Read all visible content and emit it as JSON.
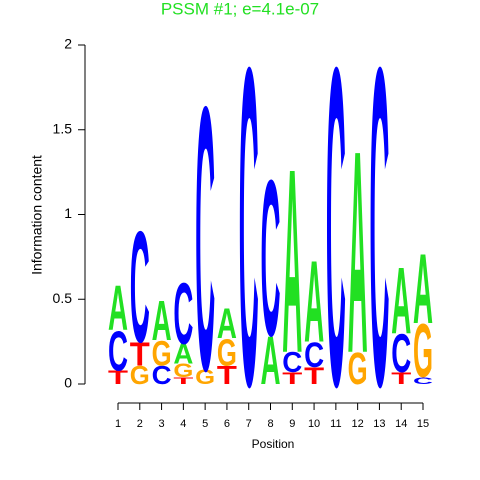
{
  "chart_data": {
    "type": "sequence-logo",
    "title": "PSSM #1; e=4.1e-07",
    "title_color": "#22e022",
    "x_label": "Position",
    "y_label": "Information content",
    "xlim": [
      1,
      15
    ],
    "xticks": [
      1,
      2,
      3,
      4,
      5,
      6,
      7,
      8,
      9,
      10,
      11,
      12,
      13,
      14,
      15
    ],
    "ylim": [
      0,
      2
    ],
    "yticks": [
      0,
      0.5,
      1,
      1.5,
      2
    ],
    "colors": {
      "A": "#22e022",
      "C": "#0000ff",
      "G": "#ffa500",
      "T": "#ff0000"
    },
    "stacks": [
      [
        {
          "letter": "T",
          "value": 0.08
        },
        {
          "letter": "C",
          "value": 0.24
        },
        {
          "letter": "A",
          "value": 0.27
        }
      ],
      [
        {
          "letter": "G",
          "value": 0.11
        },
        {
          "letter": "T",
          "value": 0.14
        },
        {
          "letter": "C",
          "value": 0.67
        }
      ],
      [
        {
          "letter": "C",
          "value": 0.11
        },
        {
          "letter": "G",
          "value": 0.15
        },
        {
          "letter": "A",
          "value": 0.24
        }
      ],
      [
        {
          "letter": "T",
          "value": 0.04
        },
        {
          "letter": "G",
          "value": 0.08
        },
        {
          "letter": "A",
          "value": 0.12
        },
        {
          "letter": "C",
          "value": 0.37
        }
      ],
      [
        {
          "letter": "G",
          "value": 0.09
        },
        {
          "letter": "C",
          "value": 1.59
        }
      ],
      [
        {
          "letter": "T",
          "value": 0.11
        },
        {
          "letter": "G",
          "value": 0.16
        },
        {
          "letter": "A",
          "value": 0.18
        }
      ],
      [
        {
          "letter": "C",
          "value": 1.92
        }
      ],
      [
        {
          "letter": "A",
          "value": 0.29
        },
        {
          "letter": "C",
          "value": 0.94
        }
      ],
      [
        {
          "letter": "T",
          "value": 0.07
        },
        {
          "letter": "C",
          "value": 0.12
        },
        {
          "letter": "A",
          "value": 1.11
        }
      ],
      [
        {
          "letter": "T",
          "value": 0.1
        },
        {
          "letter": "C",
          "value": 0.15
        },
        {
          "letter": "A",
          "value": 0.49
        }
      ],
      [
        {
          "letter": "C",
          "value": 1.92
        }
      ],
      [
        {
          "letter": "G",
          "value": 0.19
        },
        {
          "letter": "A",
          "value": 1.22
        }
      ],
      [
        {
          "letter": "C",
          "value": 1.92
        }
      ],
      [
        {
          "letter": "T",
          "value": 0.07
        },
        {
          "letter": "C",
          "value": 0.23
        },
        {
          "letter": "A",
          "value": 0.4
        }
      ],
      [
        {
          "letter": "C",
          "value": 0.04
        },
        {
          "letter": "G",
          "value": 0.32
        },
        {
          "letter": "A",
          "value": 0.42
        }
      ]
    ]
  }
}
